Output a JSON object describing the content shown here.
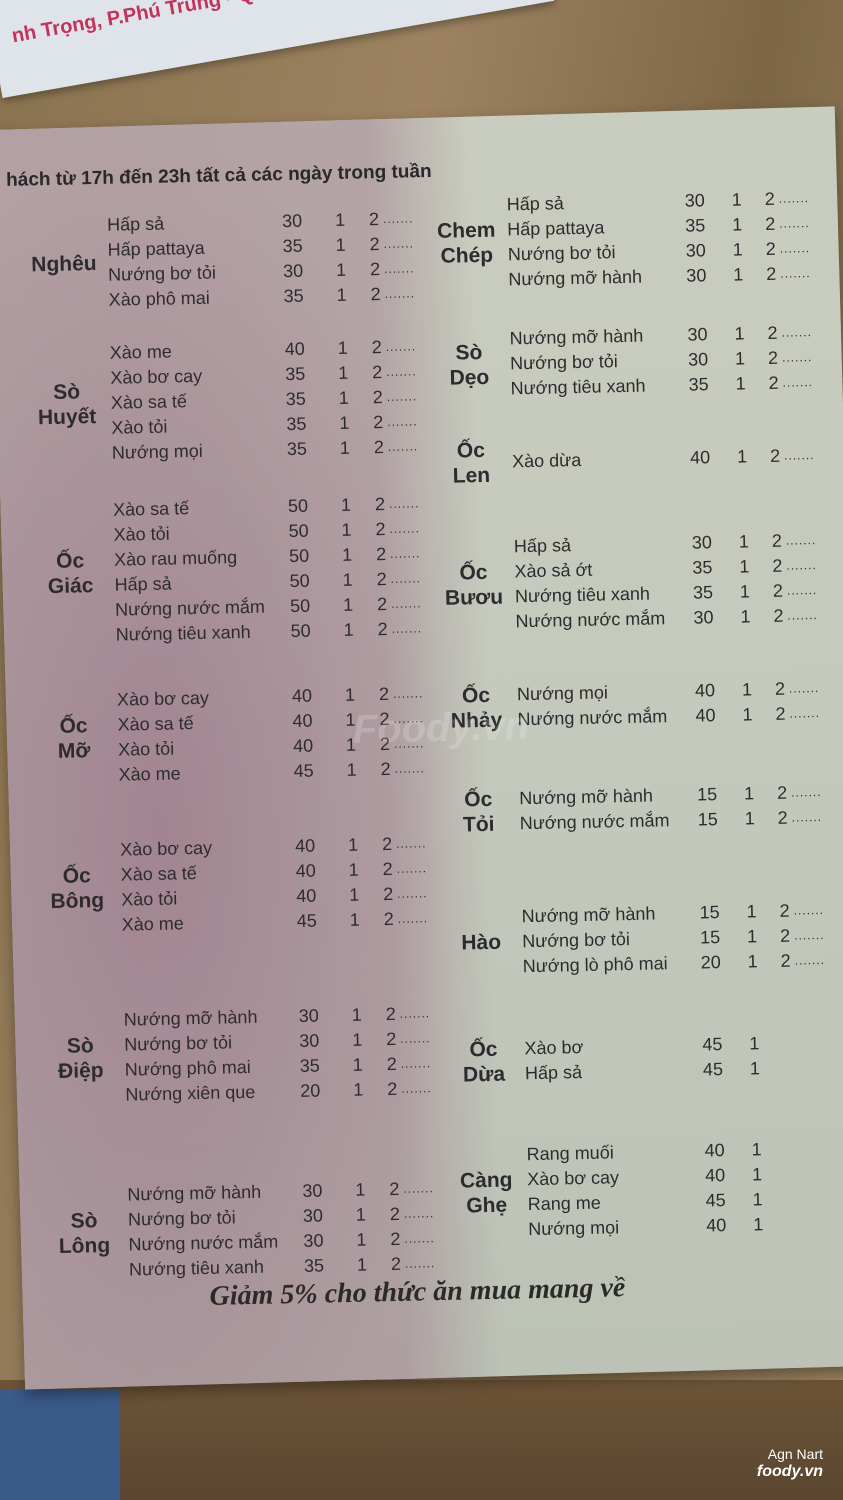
{
  "flyer_text": "nh Trọng, P.Phú Trung - Q.T",
  "header": "hách từ 17h đến 23h tất cả các ngày trong tuần",
  "left_sections": [
    {
      "name": [
        "Nghêu"
      ],
      "items": [
        [
          "Hấp sả",
          "30",
          "1",
          "2"
        ],
        [
          "Hấp pattaya",
          "35",
          "1",
          "2"
        ],
        [
          "Nướng bơ tỏi",
          "30",
          "1",
          "2"
        ],
        [
          "Xào phô mai",
          "35",
          "1",
          "2"
        ]
      ]
    },
    {
      "name": [
        "Sò",
        "Huyết"
      ],
      "items": [
        [
          "Xào me",
          "40",
          "1",
          "2"
        ],
        [
          "Xào bơ cay",
          "35",
          "1",
          "2"
        ],
        [
          "Xào sa tế",
          "35",
          "1",
          "2"
        ],
        [
          "Xào tỏi",
          "35",
          "1",
          "2"
        ],
        [
          "Nướng mọi",
          "35",
          "1",
          "2"
        ]
      ]
    },
    {
      "name": [
        "Ốc",
        "Giác"
      ],
      "items": [
        [
          "Xào sa tế",
          "50",
          "1",
          "2"
        ],
        [
          "Xào tỏi",
          "50",
          "1",
          "2"
        ],
        [
          "Xào rau muống",
          "50",
          "1",
          "2"
        ],
        [
          "Hấp sả",
          "50",
          "1",
          "2"
        ],
        [
          "Nướng nước mắm",
          "50",
          "1",
          "2"
        ],
        [
          "Nướng tiêu xanh",
          "50",
          "1",
          "2"
        ]
      ]
    },
    {
      "name": [
        "Ốc",
        "Mỡ"
      ],
      "items": [
        [
          "Xào bơ cay",
          "40",
          "1",
          "2"
        ],
        [
          "Xào sa tế",
          "40",
          "1",
          "2"
        ],
        [
          "Xào tỏi",
          "40",
          "1",
          "2"
        ],
        [
          "Xào me",
          "45",
          "1",
          "2"
        ]
      ]
    },
    {
      "name": [
        "Ốc",
        "Bông"
      ],
      "items": [
        [
          "Xào bơ cay",
          "40",
          "1",
          "2"
        ],
        [
          "Xào sa tế",
          "40",
          "1",
          "2"
        ],
        [
          "Xào tỏi",
          "40",
          "1",
          "2"
        ],
        [
          "Xào me",
          "45",
          "1",
          "2"
        ]
      ]
    },
    {
      "name": [
        "Sò",
        "Điệp"
      ],
      "items": [
        [
          "Nướng mỡ hành",
          "30",
          "1",
          "2"
        ],
        [
          "Nướng bơ tỏi",
          "30",
          "1",
          "2"
        ],
        [
          "Nướng phô mai",
          "35",
          "1",
          "2"
        ],
        [
          "Nướng xiên que",
          "20",
          "1",
          "2"
        ]
      ]
    },
    {
      "name": [
        "Sò",
        "Lông"
      ],
      "items": [
        [
          "Nướng mỡ hành",
          "30",
          "1",
          "2"
        ],
        [
          "Nướng bơ tỏi",
          "30",
          "1",
          "2"
        ],
        [
          "Nướng nước mắm",
          "30",
          "1",
          "2"
        ],
        [
          "Nướng tiêu xanh",
          "35",
          "1",
          "2"
        ]
      ]
    }
  ],
  "right_sections": [
    {
      "name": [
        "Chem",
        "Chép"
      ],
      "items": [
        [
          "Hấp sả",
          "30",
          "1",
          "2"
        ],
        [
          "Hấp pattaya",
          "35",
          "1",
          "2"
        ],
        [
          "Nướng bơ tỏi",
          "30",
          "1",
          "2"
        ],
        [
          "Nướng mỡ hành",
          "30",
          "1",
          "2"
        ]
      ]
    },
    {
      "name": [
        "Sò",
        "Dẹo"
      ],
      "items": [
        [
          "Nướng mỡ hành",
          "30",
          "1",
          "2"
        ],
        [
          "Nướng bơ tỏi",
          "30",
          "1",
          "2"
        ],
        [
          "Nướng tiêu xanh",
          "35",
          "1",
          "2"
        ]
      ]
    },
    {
      "name": [
        "Ốc",
        "Len"
      ],
      "items": [
        [
          "Xào dừa",
          "40",
          "1",
          "2"
        ]
      ]
    },
    {
      "name": [
        "Ốc",
        "Bươu"
      ],
      "items": [
        [
          "Hấp sả",
          "30",
          "1",
          "2"
        ],
        [
          "Xào sả ớt",
          "35",
          "1",
          "2"
        ],
        [
          "Nướng tiêu xanh",
          "35",
          "1",
          "2"
        ],
        [
          "Nướng nước mắm",
          "30",
          "1",
          "2"
        ]
      ]
    },
    {
      "name": [
        "Ốc",
        "Nhảy"
      ],
      "items": [
        [
          "Nướng mọi",
          "40",
          "1",
          "2"
        ],
        [
          "Nướng nước mắm",
          "40",
          "1",
          "2"
        ]
      ]
    },
    {
      "name": [
        "Ốc",
        "Tỏi"
      ],
      "items": [
        [
          "Nướng mỡ hành",
          "15",
          "1",
          "2"
        ],
        [
          "Nướng nước mắm",
          "15",
          "1",
          "2"
        ]
      ]
    },
    {
      "name": [
        "Hào"
      ],
      "items": [
        [
          "Nướng mỡ hành",
          "15",
          "1",
          "2"
        ],
        [
          "Nướng bơ tỏi",
          "15",
          "1",
          "2"
        ],
        [
          "Nướng lò phô mai",
          "20",
          "1",
          "2"
        ]
      ]
    },
    {
      "name": [
        "Ốc",
        "Dừa"
      ],
      "items": [
        [
          "Xào bơ",
          "45",
          "1",
          ""
        ],
        [
          "Hấp sả",
          "45",
          "1",
          ""
        ]
      ]
    },
    {
      "name": [
        "Càng",
        "Ghẹ"
      ],
      "items": [
        [
          "Rang muối",
          "40",
          "1",
          ""
        ],
        [
          "Xào bơ cay",
          "40",
          "1",
          ""
        ],
        [
          "Rang me",
          "45",
          "1",
          ""
        ],
        [
          "Nướng mọi",
          "40",
          "1",
          ""
        ]
      ]
    }
  ],
  "dots": ".......",
  "footer": "Giảm 5% cho thức ăn mua mang về",
  "watermark": "Foody.vn",
  "credit": {
    "author": "Agn Nart",
    "brand": "foody.vn"
  }
}
